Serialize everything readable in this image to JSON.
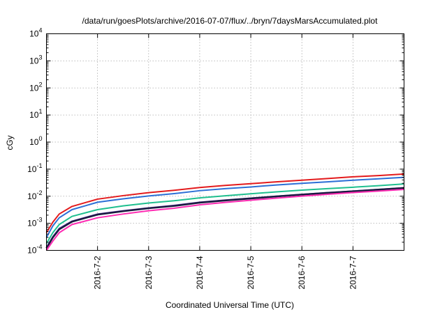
{
  "chart_data": {
    "type": "line",
    "title": "/data/run/goesPlots/archive/2016-07-07/flux/../bryn/7daysMarsAccumulated.plot",
    "xlabel": "Coordinated Universal Time (UTC)",
    "ylabel": "cGy",
    "y_scale": "log",
    "ylim": [
      0.0001,
      10000
    ],
    "y_ticks": [
      {
        "base": "10",
        "exp": "-4"
      },
      {
        "base": "10",
        "exp": "-3"
      },
      {
        "base": "10",
        "exp": "-2"
      },
      {
        "base": "10",
        "exp": "-1"
      },
      {
        "base": "10",
        "exp": "0"
      },
      {
        "base": "10",
        "exp": "1"
      },
      {
        "base": "10",
        "exp": "2"
      },
      {
        "base": "10",
        "exp": "3"
      },
      {
        "base": "10",
        "exp": "4"
      }
    ],
    "xlim": [
      "2016-07-01T00:00",
      "2016-07-08T00:00"
    ],
    "x_ticks": [
      "2016-7-2",
      "2016-7-3",
      "2016-7-4",
      "2016-7-5",
      "2016-7-6",
      "2016-7-7"
    ],
    "grid": true,
    "x": [
      "2016-07-01T00:00",
      "2016-07-01T03:00",
      "2016-07-01T06:00",
      "2016-07-01T12:00",
      "2016-07-02T00:00",
      "2016-07-02T12:00",
      "2016-07-03T00:00",
      "2016-07-03T12:00",
      "2016-07-04T00:00",
      "2016-07-04T12:00",
      "2016-07-05T00:00",
      "2016-07-05T12:00",
      "2016-07-06T00:00",
      "2016-07-06T12:00",
      "2016-07-07T00:00",
      "2016-07-07T12:00",
      "2016-07-08T00:00"
    ],
    "series": [
      {
        "color": "#e31a1c",
        "width": 2,
        "values": [
          0.00045,
          0.0011,
          0.0022,
          0.0042,
          0.0078,
          0.0105,
          0.0135,
          0.0165,
          0.021,
          0.025,
          0.029,
          0.034,
          0.039,
          0.045,
          0.052,
          0.058,
          0.066
        ]
      },
      {
        "color": "#2c6fd6",
        "width": 2,
        "values": [
          0.0003,
          0.0008,
          0.0016,
          0.0032,
          0.006,
          0.008,
          0.0102,
          0.0125,
          0.016,
          0.019,
          0.022,
          0.026,
          0.03,
          0.034,
          0.039,
          0.044,
          0.05
        ]
      },
      {
        "color": "#1fbf8f",
        "width": 2,
        "values": [
          0.00018,
          0.00045,
          0.0009,
          0.0018,
          0.0032,
          0.0044,
          0.0056,
          0.0068,
          0.0087,
          0.0104,
          0.0123,
          0.0145,
          0.0168,
          0.019,
          0.0215,
          0.0245,
          0.0285
        ]
      },
      {
        "color": "#7a4cc4",
        "width": 2,
        "values": [
          0.00013,
          0.00032,
          0.00065,
          0.0012,
          0.0022,
          0.0029,
          0.0037,
          0.0046,
          0.006,
          0.0072,
          0.0085,
          0.01,
          0.0117,
          0.0135,
          0.0155,
          0.0178,
          0.0205
        ]
      },
      {
        "color": "#1a1a40",
        "width": 2.6,
        "values": [
          0.00012,
          0.0003,
          0.0006,
          0.00115,
          0.0021,
          0.0028,
          0.0036,
          0.0044,
          0.0058,
          0.007,
          0.0083,
          0.0098,
          0.0115,
          0.0133,
          0.0152,
          0.0175,
          0.0202
        ]
      },
      {
        "color": "#ff2bb2",
        "width": 2,
        "values": [
          0.0001,
          0.00022,
          0.00045,
          0.0009,
          0.0016,
          0.0022,
          0.0029,
          0.0036,
          0.0048,
          0.0059,
          0.0071,
          0.0085,
          0.0101,
          0.0118,
          0.0136,
          0.0155,
          0.0178
        ]
      }
    ]
  }
}
